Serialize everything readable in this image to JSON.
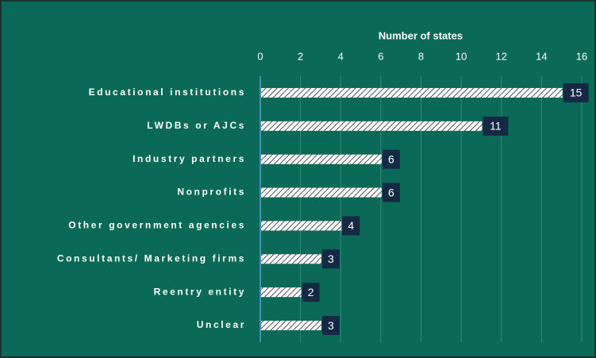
{
  "chart_data": {
    "type": "bar",
    "orientation": "horizontal",
    "x_axis_label": "Number of states",
    "categories": [
      "Educational institutions",
      "LWDBs or AJCs",
      "Industry partners",
      "Nonprofits",
      "Other government agencies",
      "Consultants/ Marketing firms",
      "Reentry entity",
      "Unclear"
    ],
    "values": [
      15,
      11,
      6,
      6,
      4,
      3,
      2,
      3
    ],
    "color": "#ffffff",
    "xlim": [
      0,
      16
    ],
    "xticks": [
      0,
      2,
      4,
      6,
      8,
      10,
      12,
      14,
      16
    ],
    "grid": true
  }
}
